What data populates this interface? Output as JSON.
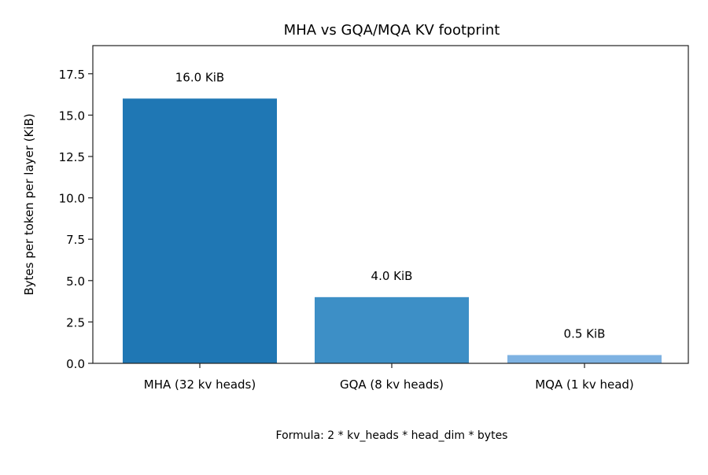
{
  "chart_data": {
    "type": "bar",
    "title": "MHA vs GQA/MQA KV footprint",
    "xlabel": "",
    "ylabel": "Bytes per token per layer (KiB)",
    "categories": [
      "MHA (32 kv heads)",
      "GQA (8 kv heads)",
      "MQA (1 kv head)"
    ],
    "values": [
      16.0,
      4.0,
      0.5
    ],
    "data_labels": [
      "16.0 KiB",
      "4.0 KiB",
      "0.5 KiB"
    ],
    "colors": [
      "#1f77b4",
      "#3d8fc6",
      "#7eb2e2"
    ],
    "ylim": [
      0,
      19.2
    ],
    "yticks": [
      "0.0",
      "2.5",
      "5.0",
      "7.5",
      "10.0",
      "12.5",
      "15.0",
      "17.5"
    ],
    "grid": false,
    "legend": null,
    "annotation": "Formula: 2 * kv_heads * head_dim * bytes"
  }
}
